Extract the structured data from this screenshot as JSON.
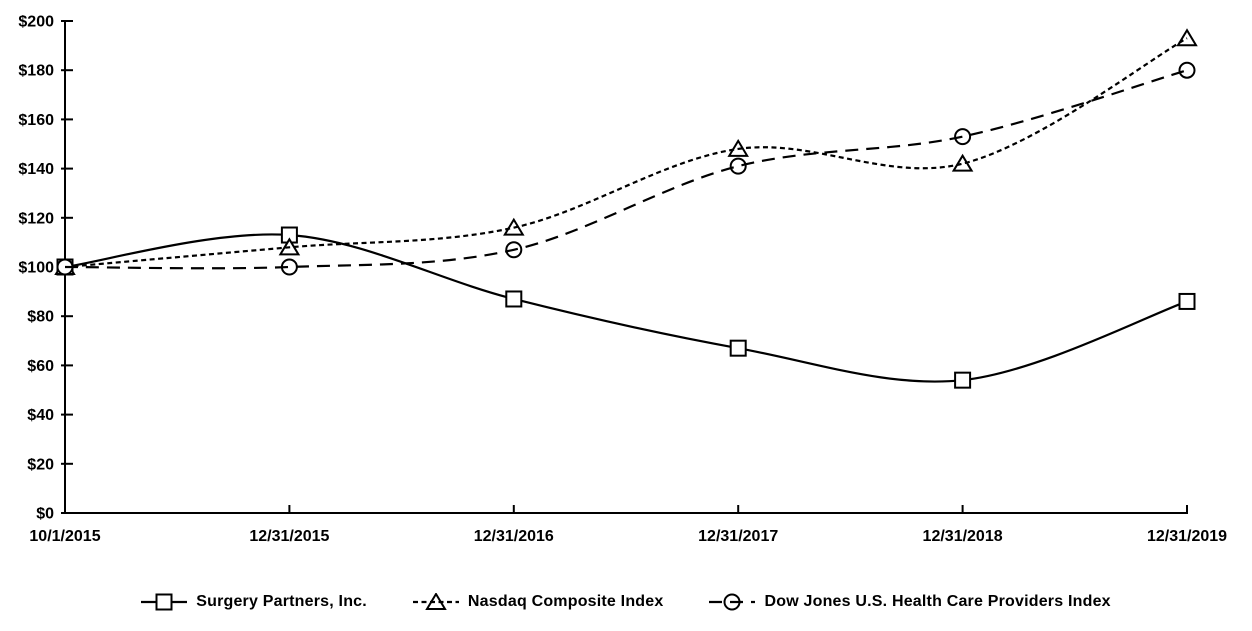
{
  "figure": {
    "background": "#ffffff",
    "text_color": "#000000",
    "line_color": "#000000"
  },
  "chart_data": {
    "type": "line",
    "title": "",
    "x_categories": [
      "10/1/2015",
      "12/31/2015",
      "12/31/2016",
      "12/31/2017",
      "12/31/2018",
      "12/31/2019"
    ],
    "y_axis": {
      "min": 0,
      "max": 200,
      "ticks": [
        {
          "label": "$0",
          "value": 0
        },
        {
          "label": "$20",
          "value": 20
        },
        {
          "label": "$40",
          "value": 40
        },
        {
          "label": "$60",
          "value": 60
        },
        {
          "label": "$80",
          "value": 80
        },
        {
          "label": "$100",
          "value": 100
        },
        {
          "label": "$120",
          "value": 120
        },
        {
          "label": "$140",
          "value": 140
        },
        {
          "label": "$160",
          "value": 160
        },
        {
          "label": "$180",
          "value": 180
        },
        {
          "label": "$200",
          "value": 200
        }
      ]
    },
    "grid": false,
    "legend_position": "bottom",
    "series": [
      {
        "name": "Surgery Partners, Inc.",
        "marker": "square",
        "line_style": "solid",
        "values": [
          100,
          113,
          87,
          67,
          54,
          86
        ]
      },
      {
        "name": "Nasdaq Composite Index",
        "marker": "triangle",
        "line_style": "dotted",
        "values": [
          100,
          108,
          116,
          148,
          142,
          193
        ]
      },
      {
        "name": "Dow Jones U.S. Health Care Providers Index",
        "marker": "circle",
        "line_style": "dashed",
        "values": [
          100,
          100,
          107,
          141,
          153,
          180
        ]
      }
    ]
  }
}
